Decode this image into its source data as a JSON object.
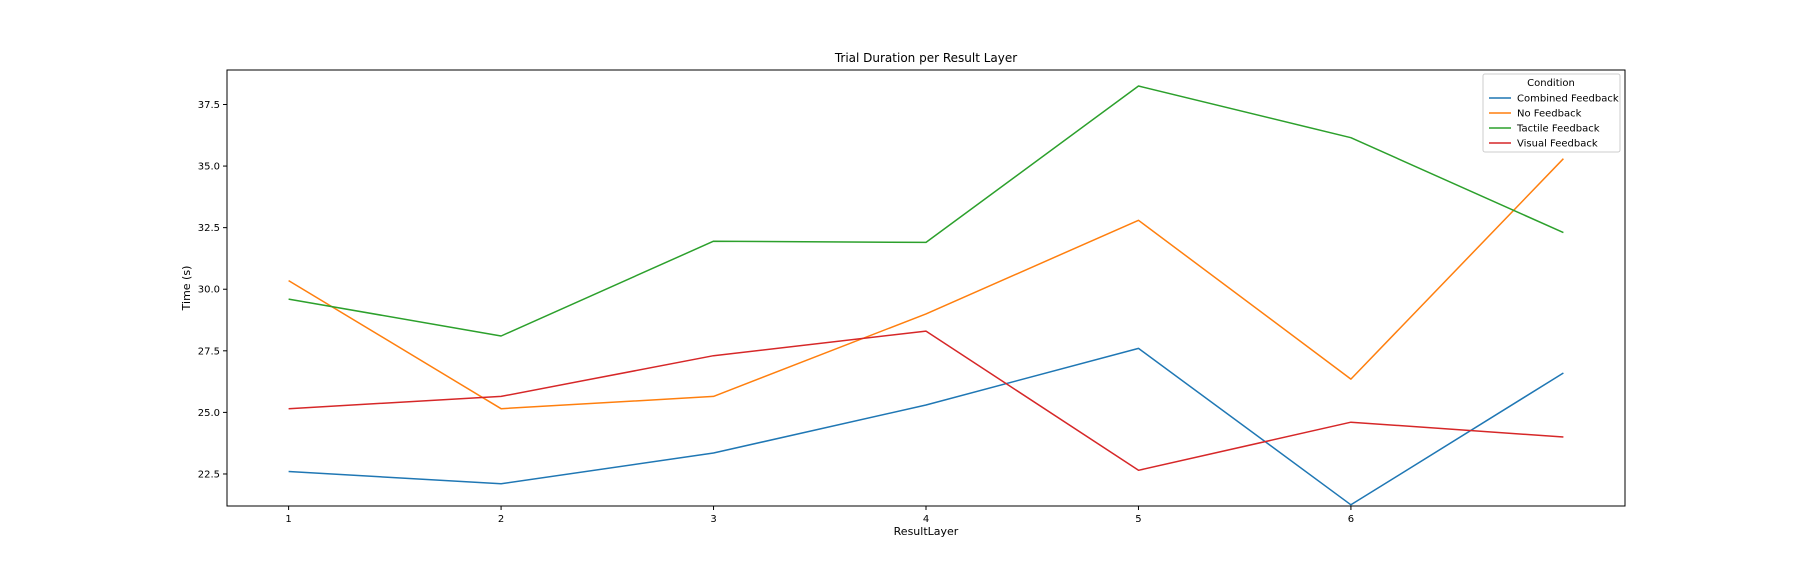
{
  "chart_data": {
    "type": "line",
    "title": "Trial Duration per Result Layer",
    "xlabel": "ResultLayer",
    "ylabel": "Time (s)",
    "x": [
      1,
      2,
      3,
      4,
      5,
      6,
      7
    ],
    "xticks": [
      "1",
      "2",
      "3",
      "4",
      "5",
      "6"
    ],
    "xlim": [
      0.71,
      7.29
    ],
    "ylim": [
      21.2,
      38.9
    ],
    "yticks": [
      "22.5",
      "25.0",
      "27.5",
      "30.0",
      "32.5",
      "35.0",
      "37.5"
    ],
    "grid": false,
    "legend_position": "top-right",
    "legend_title": "Condition",
    "series": [
      {
        "name": "Combined Feedback",
        "color": "#1f77b4",
        "values": [
          22.6,
          22.1,
          23.35,
          25.3,
          27.6,
          21.25,
          26.6
        ]
      },
      {
        "name": "No Feedback",
        "color": "#ff7f0e",
        "values": [
          30.35,
          25.15,
          25.65,
          29.0,
          32.8,
          26.35,
          35.3
        ]
      },
      {
        "name": "Tactile Feedback",
        "color": "#2ca02c",
        "values": [
          29.6,
          28.1,
          31.95,
          31.9,
          38.25,
          36.15,
          32.3
        ]
      },
      {
        "name": "Visual Feedback",
        "color": "#d62728",
        "values": [
          25.15,
          25.65,
          27.3,
          28.3,
          22.65,
          24.6,
          24.0
        ]
      }
    ]
  }
}
